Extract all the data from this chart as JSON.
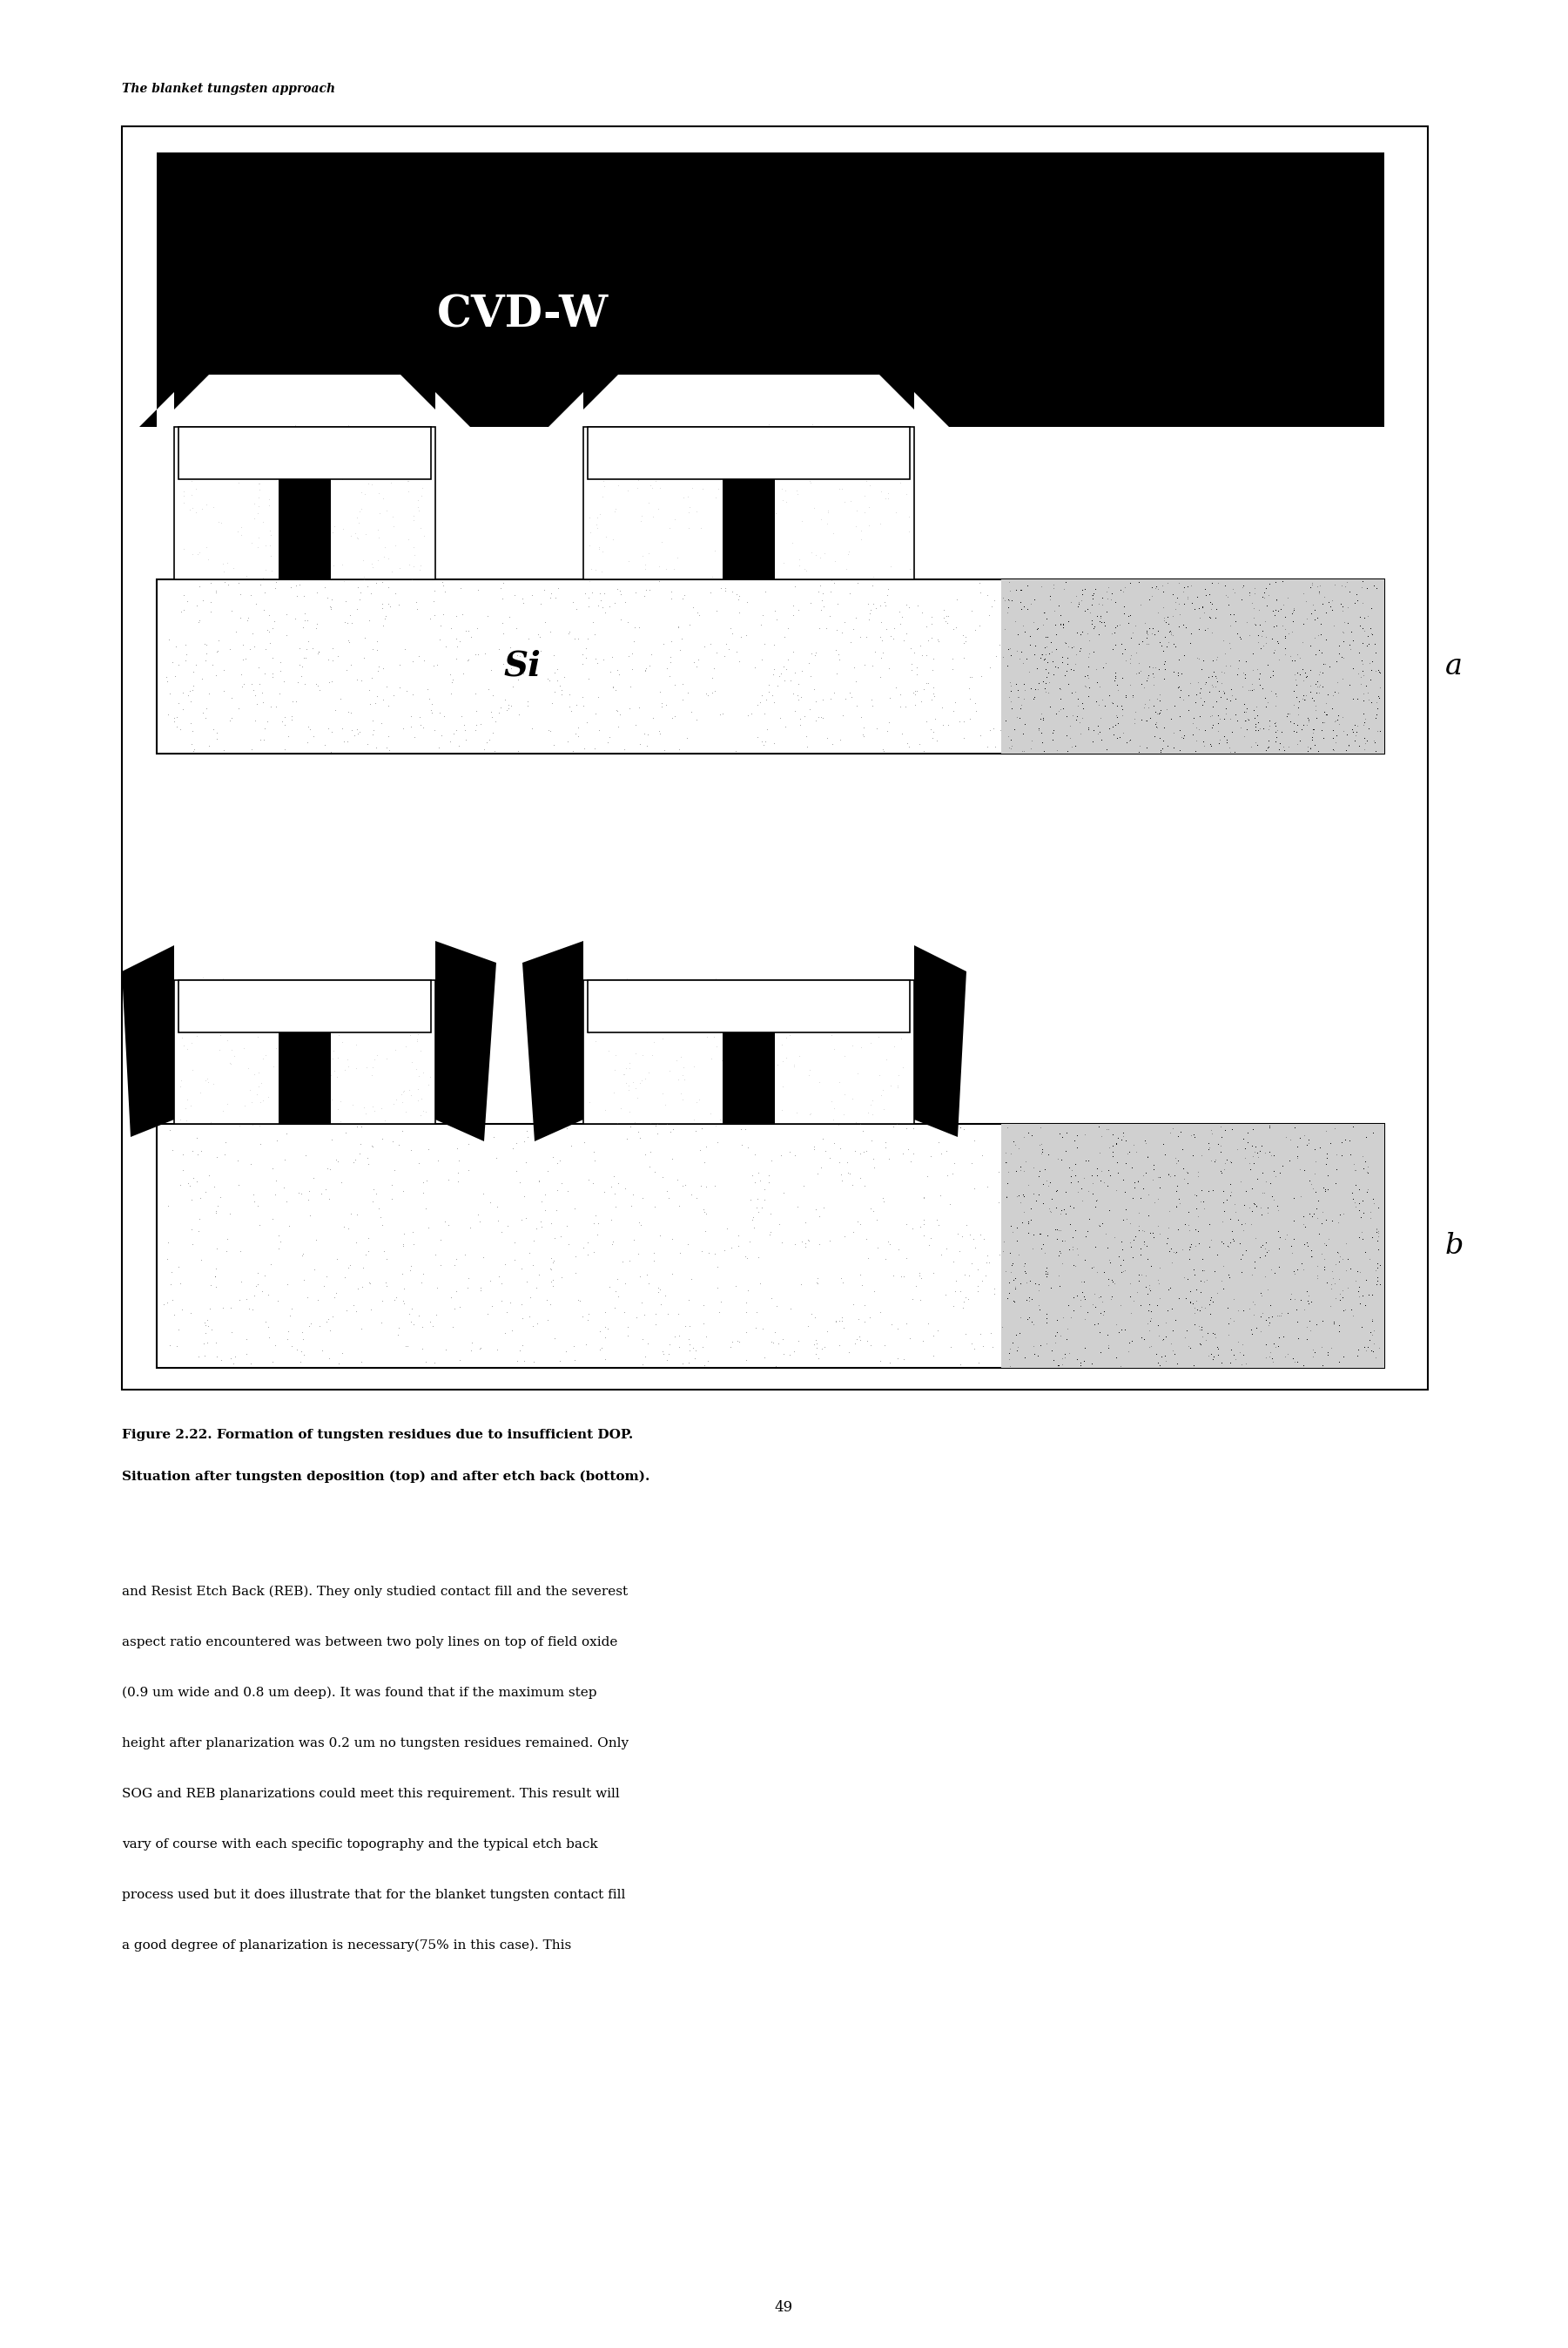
{
  "page_width": 18.01,
  "page_height": 26.95,
  "background_color": "#ffffff",
  "header_text": "The blanket tungsten approach",
  "header_fontsize": 10,
  "caption_line1": "Figure 2.22. Formation of tungsten residues due to insufficient DOP.",
  "caption_line2": "Situation after tungsten deposition (top) and after etch back (bottom).",
  "caption_fontsize": 11,
  "body_lines": [
    "and Resist Etch Back (REB). They only studied contact fill and the severest",
    "aspect ratio encountered was between two poly lines on top of field oxide",
    "(0.9 um wide and 0.8 um deep). It was found that if the maximum step",
    "height after planarization was 0.2 um no tungsten residues remained. Only",
    "SOG and REB planarizations could meet this requirement. This result will",
    "vary of course with each specific topography and the typical etch back",
    "process used but it does illustrate that for the blanket tungsten contact fill",
    "a good degree of planarization is necessary(75% in this case). This"
  ],
  "body_fontsize": 11,
  "page_number": "49"
}
